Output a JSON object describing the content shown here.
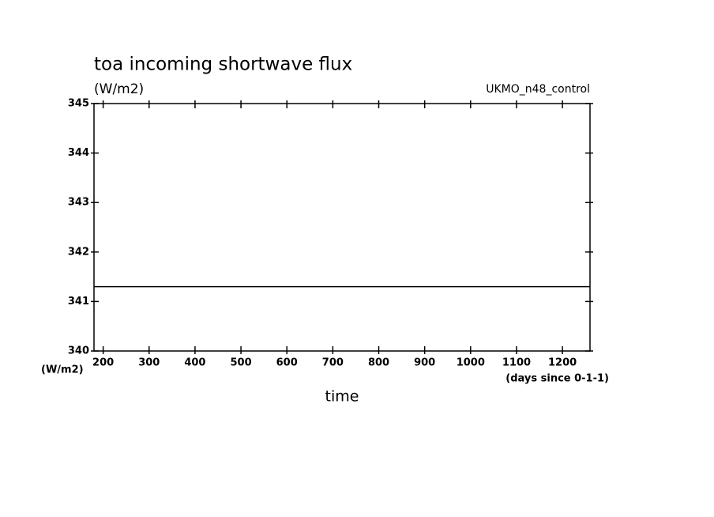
{
  "chart_data": {
    "type": "line",
    "title": "toa incoming shortwave flux",
    "subtitle": "(W/m2)",
    "annotation": "UKMO_n48_control",
    "y_unit": "(W/m2)",
    "x_unit": "(days since 0-1-1)",
    "xlabel": "time",
    "x": [
      180,
      1260
    ],
    "series": [
      {
        "color": "#000000",
        "values": [
          341.3,
          341.3
        ]
      }
    ],
    "xlim": [
      180,
      1260
    ],
    "xticks": [
      200,
      300,
      400,
      500,
      600,
      700,
      800,
      900,
      1000,
      1100,
      1200
    ],
    "ylim": [
      340,
      345
    ],
    "yticks": [
      340,
      341,
      342,
      343,
      344,
      345
    ],
    "grid": false
  }
}
